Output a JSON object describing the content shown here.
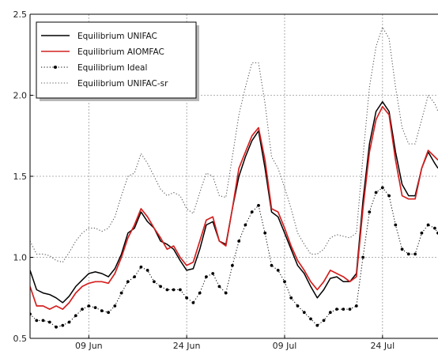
{
  "chart_data": {
    "type": "line",
    "ylim": [
      0.5,
      2.5
    ],
    "y_ticks": [
      "0.5",
      "1.0",
      "1.5",
      "2.0",
      "2.5"
    ],
    "x_ticks": [
      {
        "label": "09 Jun",
        "x": 15
      },
      {
        "label": "24 Jun",
        "x": 30
      },
      {
        "label": "09 Jul",
        "x": 45
      },
      {
        "label": "24 Jul",
        "x": 60
      }
    ],
    "x_range": [
      6,
      68.5
    ],
    "grid": true,
    "legend_position": "top-left",
    "series": [
      {
        "name": "Equilibrium UNIFAC",
        "color": "#000000",
        "style": "solid",
        "values": [
          [
            6,
            0.92
          ],
          [
            7,
            0.8
          ],
          [
            8,
            0.78
          ],
          [
            9,
            0.77
          ],
          [
            10,
            0.75
          ],
          [
            11,
            0.72
          ],
          [
            12,
            0.76
          ],
          [
            13,
            0.82
          ],
          [
            14,
            0.86
          ],
          [
            15,
            0.9
          ],
          [
            16,
            0.91
          ],
          [
            17,
            0.9
          ],
          [
            18,
            0.88
          ],
          [
            19,
            0.93
          ],
          [
            20,
            1.02
          ],
          [
            21,
            1.15
          ],
          [
            22,
            1.18
          ],
          [
            23,
            1.28
          ],
          [
            24,
            1.22
          ],
          [
            25,
            1.18
          ],
          [
            26,
            1.1
          ],
          [
            27,
            1.08
          ],
          [
            28,
            1.05
          ],
          [
            29,
            0.98
          ],
          [
            30,
            0.92
          ],
          [
            31,
            0.93
          ],
          [
            32,
            1.05
          ],
          [
            33,
            1.2
          ],
          [
            34,
            1.22
          ],
          [
            35,
            1.1
          ],
          [
            36,
            1.08
          ],
          [
            37,
            1.3
          ],
          [
            38,
            1.5
          ],
          [
            39,
            1.62
          ],
          [
            40,
            1.72
          ],
          [
            41,
            1.78
          ],
          [
            42,
            1.55
          ],
          [
            43,
            1.28
          ],
          [
            44,
            1.25
          ],
          [
            45,
            1.15
          ],
          [
            46,
            1.05
          ],
          [
            47,
            0.95
          ],
          [
            48,
            0.9
          ],
          [
            49,
            0.82
          ],
          [
            50,
            0.75
          ],
          [
            51,
            0.8
          ],
          [
            52,
            0.87
          ],
          [
            53,
            0.88
          ],
          [
            54,
            0.85
          ],
          [
            55,
            0.85
          ],
          [
            56,
            0.9
          ],
          [
            57,
            1.35
          ],
          [
            58,
            1.7
          ],
          [
            59,
            1.9
          ],
          [
            60,
            1.96
          ],
          [
            61,
            1.9
          ],
          [
            62,
            1.65
          ],
          [
            63,
            1.45
          ],
          [
            64,
            1.38
          ],
          [
            65,
            1.38
          ],
          [
            66,
            1.55
          ],
          [
            67,
            1.65
          ],
          [
            68,
            1.58
          ],
          [
            68.5,
            1.55
          ]
        ]
      },
      {
        "name": "Equilibrium AIOMFAC",
        "color": "#d42020",
        "style": "solid",
        "values": [
          [
            6,
            0.82
          ],
          [
            7,
            0.7
          ],
          [
            8,
            0.7
          ],
          [
            9,
            0.68
          ],
          [
            10,
            0.7
          ],
          [
            11,
            0.68
          ],
          [
            12,
            0.72
          ],
          [
            13,
            0.78
          ],
          [
            14,
            0.82
          ],
          [
            15,
            0.84
          ],
          [
            16,
            0.85
          ],
          [
            17,
            0.85
          ],
          [
            18,
            0.84
          ],
          [
            19,
            0.9
          ],
          [
            20,
            1.0
          ],
          [
            21,
            1.12
          ],
          [
            22,
            1.2
          ],
          [
            23,
            1.3
          ],
          [
            24,
            1.25
          ],
          [
            25,
            1.18
          ],
          [
            26,
            1.12
          ],
          [
            27,
            1.05
          ],
          [
            28,
            1.07
          ],
          [
            29,
            1.0
          ],
          [
            30,
            0.95
          ],
          [
            31,
            0.97
          ],
          [
            32,
            1.1
          ],
          [
            33,
            1.23
          ],
          [
            34,
            1.25
          ],
          [
            35,
            1.1
          ],
          [
            36,
            1.07
          ],
          [
            37,
            1.3
          ],
          [
            38,
            1.55
          ],
          [
            39,
            1.65
          ],
          [
            40,
            1.75
          ],
          [
            41,
            1.8
          ],
          [
            42,
            1.6
          ],
          [
            43,
            1.3
          ],
          [
            44,
            1.28
          ],
          [
            45,
            1.18
          ],
          [
            46,
            1.07
          ],
          [
            47,
            0.98
          ],
          [
            48,
            0.92
          ],
          [
            49,
            0.85
          ],
          [
            50,
            0.8
          ],
          [
            51,
            0.85
          ],
          [
            52,
            0.92
          ],
          [
            53,
            0.9
          ],
          [
            54,
            0.88
          ],
          [
            55,
            0.85
          ],
          [
            56,
            0.88
          ],
          [
            57,
            1.3
          ],
          [
            58,
            1.65
          ],
          [
            59,
            1.85
          ],
          [
            60,
            1.93
          ],
          [
            61,
            1.88
          ],
          [
            62,
            1.6
          ],
          [
            63,
            1.38
          ],
          [
            64,
            1.36
          ],
          [
            65,
            1.36
          ],
          [
            66,
            1.55
          ],
          [
            67,
            1.66
          ],
          [
            68,
            1.62
          ],
          [
            68.5,
            1.6
          ]
        ]
      },
      {
        "name": "Equilibrium Ideal",
        "color": "#000000",
        "style": "dotted-markers",
        "values": [
          [
            6,
            0.65
          ],
          [
            7,
            0.61
          ],
          [
            8,
            0.61
          ],
          [
            9,
            0.6
          ],
          [
            10,
            0.57
          ],
          [
            11,
            0.58
          ],
          [
            12,
            0.6
          ],
          [
            13,
            0.64
          ],
          [
            14,
            0.68
          ],
          [
            15,
            0.7
          ],
          [
            16,
            0.69
          ],
          [
            17,
            0.67
          ],
          [
            18,
            0.66
          ],
          [
            19,
            0.7
          ],
          [
            20,
            0.78
          ],
          [
            21,
            0.85
          ],
          [
            22,
            0.88
          ],
          [
            23,
            0.94
          ],
          [
            24,
            0.92
          ],
          [
            25,
            0.85
          ],
          [
            26,
            0.82
          ],
          [
            27,
            0.8
          ],
          [
            28,
            0.8
          ],
          [
            29,
            0.8
          ],
          [
            30,
            0.75
          ],
          [
            31,
            0.72
          ],
          [
            32,
            0.78
          ],
          [
            33,
            0.88
          ],
          [
            34,
            0.9
          ],
          [
            35,
            0.82
          ],
          [
            36,
            0.78
          ],
          [
            37,
            0.95
          ],
          [
            38,
            1.1
          ],
          [
            39,
            1.2
          ],
          [
            40,
            1.28
          ],
          [
            41,
            1.32
          ],
          [
            42,
            1.15
          ],
          [
            43,
            0.95
          ],
          [
            44,
            0.92
          ],
          [
            45,
            0.85
          ],
          [
            46,
            0.75
          ],
          [
            47,
            0.7
          ],
          [
            48,
            0.66
          ],
          [
            49,
            0.62
          ],
          [
            50,
            0.58
          ],
          [
            51,
            0.61
          ],
          [
            52,
            0.66
          ],
          [
            53,
            0.68
          ],
          [
            54,
            0.68
          ],
          [
            55,
            0.68
          ],
          [
            56,
            0.7
          ],
          [
            57,
            1.0
          ],
          [
            58,
            1.28
          ],
          [
            59,
            1.4
          ],
          [
            60,
            1.43
          ],
          [
            61,
            1.38
          ],
          [
            62,
            1.2
          ],
          [
            63,
            1.05
          ],
          [
            64,
            1.02
          ],
          [
            65,
            1.02
          ],
          [
            66,
            1.15
          ],
          [
            67,
            1.2
          ],
          [
            68,
            1.18
          ],
          [
            68.5,
            1.15
          ]
        ]
      },
      {
        "name": "Equilibrium UNIFAC-sr",
        "color": "#555555",
        "style": "dotted",
        "values": [
          [
            6,
            1.1
          ],
          [
            7,
            1.02
          ],
          [
            8,
            1.02
          ],
          [
            9,
            1.01
          ],
          [
            10,
            0.98
          ],
          [
            11,
            0.97
          ],
          [
            12,
            1.03
          ],
          [
            13,
            1.1
          ],
          [
            14,
            1.15
          ],
          [
            15,
            1.18
          ],
          [
            16,
            1.18
          ],
          [
            17,
            1.16
          ],
          [
            18,
            1.18
          ],
          [
            19,
            1.25
          ],
          [
            20,
            1.38
          ],
          [
            21,
            1.5
          ],
          [
            22,
            1.52
          ],
          [
            23,
            1.64
          ],
          [
            24,
            1.58
          ],
          [
            25,
            1.5
          ],
          [
            26,
            1.42
          ],
          [
            27,
            1.38
          ],
          [
            28,
            1.4
          ],
          [
            29,
            1.38
          ],
          [
            30,
            1.3
          ],
          [
            31,
            1.27
          ],
          [
            32,
            1.4
          ],
          [
            33,
            1.52
          ],
          [
            34,
            1.5
          ],
          [
            35,
            1.38
          ],
          [
            36,
            1.37
          ],
          [
            37,
            1.62
          ],
          [
            38,
            1.88
          ],
          [
            39,
            2.05
          ],
          [
            40,
            2.2
          ],
          [
            41,
            2.2
          ],
          [
            42,
            1.95
          ],
          [
            43,
            1.62
          ],
          [
            44,
            1.55
          ],
          [
            45,
            1.43
          ],
          [
            46,
            1.3
          ],
          [
            47,
            1.15
          ],
          [
            48,
            1.08
          ],
          [
            49,
            1.02
          ],
          [
            50,
            1.02
          ],
          [
            51,
            1.05
          ],
          [
            52,
            1.12
          ],
          [
            53,
            1.14
          ],
          [
            54,
            1.13
          ],
          [
            55,
            1.12
          ],
          [
            56,
            1.15
          ],
          [
            57,
            1.62
          ],
          [
            58,
            2.05
          ],
          [
            59,
            2.3
          ],
          [
            60,
            2.42
          ],
          [
            61,
            2.35
          ],
          [
            62,
            2.05
          ],
          [
            63,
            1.8
          ],
          [
            64,
            1.7
          ],
          [
            65,
            1.7
          ],
          [
            66,
            1.85
          ],
          [
            67,
            2.0
          ],
          [
            68,
            1.95
          ],
          [
            68.5,
            1.9
          ]
        ]
      }
    ]
  }
}
